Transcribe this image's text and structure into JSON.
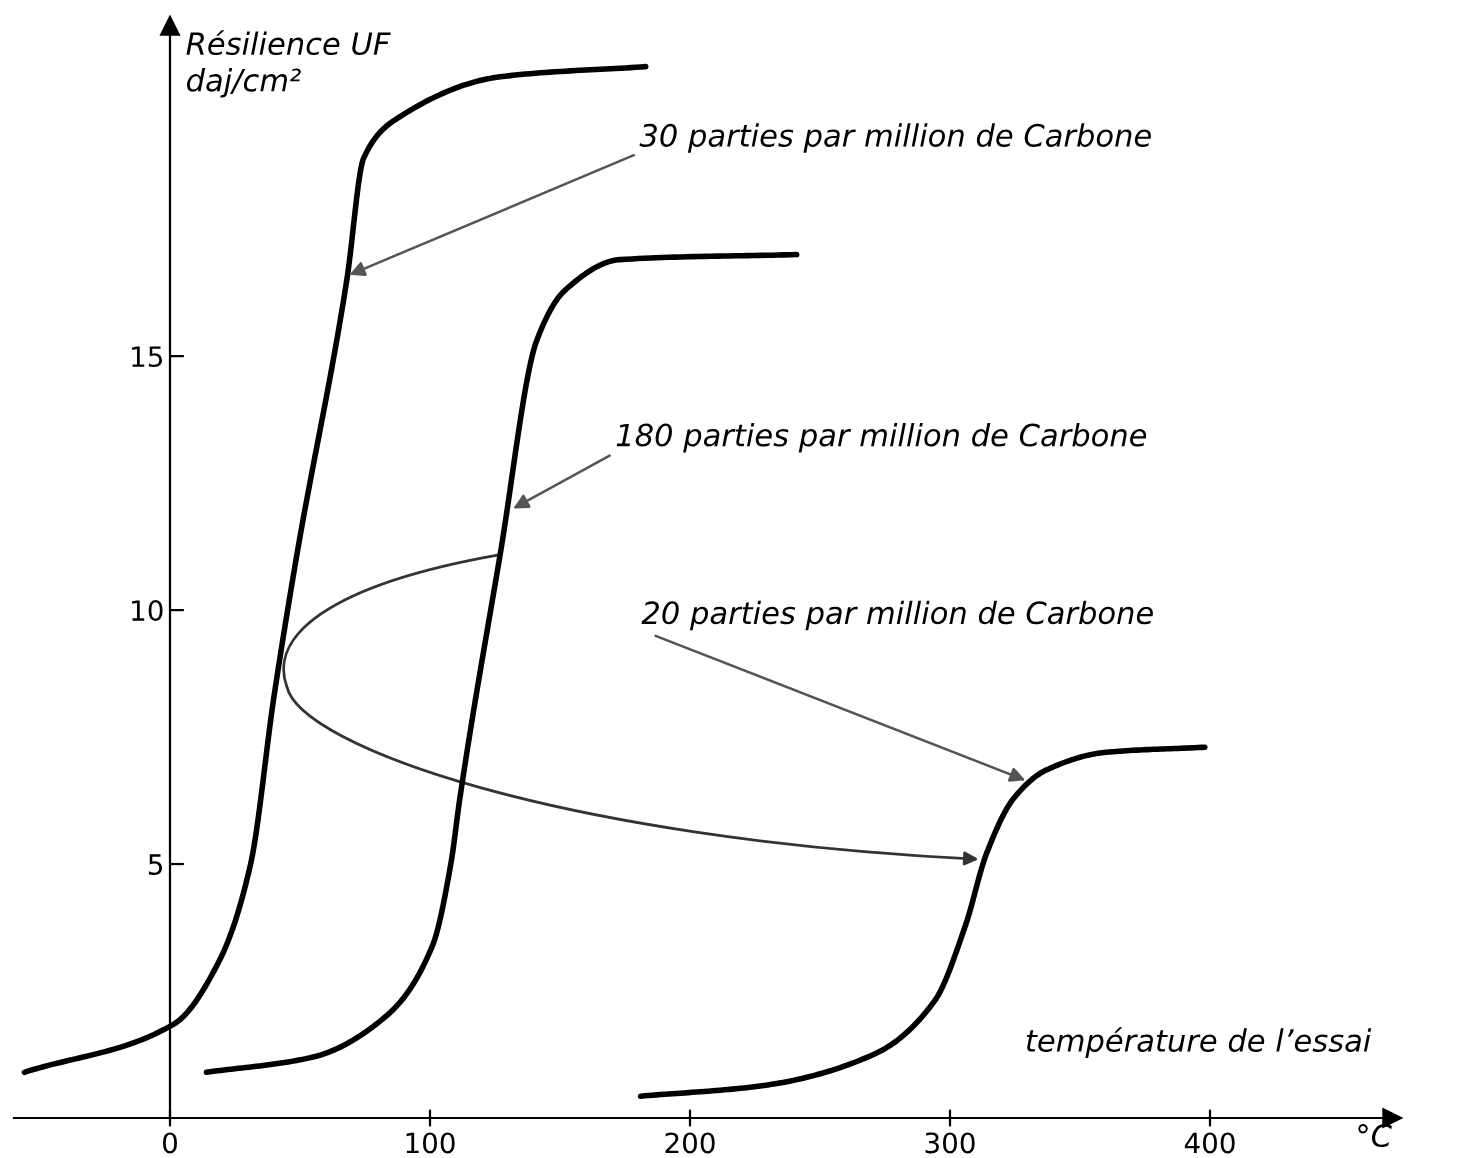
{
  "chart_data": {
    "type": "line",
    "xlabel": "température de l’essai",
    "ylabel": "Résilience UF\ndaj/cm²",
    "xlim": [
      -60,
      470
    ],
    "ylim": [
      0,
      21.5
    ],
    "xticks": [
      0,
      100,
      200,
      300,
      400
    ],
    "yticks": [
      5,
      10,
      15
    ],
    "grid": false,
    "legend": false,
    "marker": "none",
    "line_style": "solid",
    "series": [
      {
        "color": "#000000",
        "x": [
          -56,
          1.5,
          19,
          31,
          40,
          48.5,
          68,
          74.5,
          88,
          127,
          183
        ],
        "values": [
          0.9,
          1.85,
          3.1,
          5.0,
          8.3,
          11,
          16.5,
          18.9,
          19.7,
          20.5,
          20.7
        ]
      },
      {
        "color": "#000000",
        "x": [
          14,
          55,
          83,
          101,
          108,
          111.5,
          127,
          141,
          152,
          173,
          241
        ],
        "values": [
          0.9,
          1.2,
          2.0,
          3.4,
          5.0,
          6.3,
          11.1,
          15.3,
          16.3,
          16.9,
          17.0
        ]
      },
      {
        "color": "#000000",
        "x": [
          181,
          227,
          271,
          294,
          306,
          314,
          324.6,
          337,
          360,
          398
        ],
        "values": [
          0.43,
          0.63,
          1.26,
          2.3,
          3.8,
          5.2,
          6.3,
          6.85,
          7.2,
          7.3
        ]
      }
    ],
    "annotations": [
      {
        "text": "30 parties par million de Carbone",
        "x": 69,
        "y": 16.6
      },
      {
        "text": "180 parties par million de Carbone",
        "x": 132,
        "y": 12
      },
      {
        "text": "20 parties par million de Carbone",
        "x": 329,
        "y": 6.65
      },
      "°C"
    ]
  }
}
